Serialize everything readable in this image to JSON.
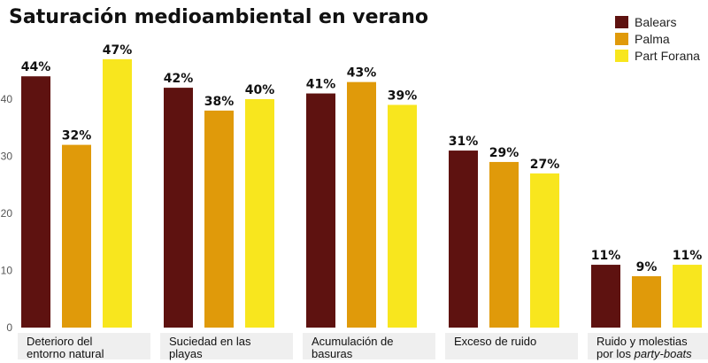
{
  "chart_data": {
    "type": "bar",
    "title": "Saturación medioambiental en verano",
    "xlabel": "",
    "ylabel": "",
    "ylim": [
      0,
      50
    ],
    "yticks": [
      0,
      10,
      20,
      30,
      40
    ],
    "grid": false,
    "legend_position": "top-right",
    "categories": [
      [
        "Deterioro del",
        "entorno natural"
      ],
      [
        "Suciedad en las",
        "playas"
      ],
      [
        "Acumulación de",
        "basuras"
      ],
      [
        "Exceso de ruido"
      ],
      [
        "Ruido y molestias",
        "por los party-boats"
      ]
    ],
    "category_italic_fragment": "party-boats",
    "series": [
      {
        "name": "Balears",
        "color": "#5e1210",
        "values": [
          44,
          42,
          41,
          31,
          11
        ]
      },
      {
        "name": "Palma",
        "color": "#e09a0a",
        "values": [
          32,
          38,
          43,
          29,
          9
        ]
      },
      {
        "name": "Part Forana",
        "color": "#f8e61e",
        "values": [
          47,
          40,
          39,
          27,
          11
        ]
      }
    ],
    "value_suffix": "%"
  }
}
